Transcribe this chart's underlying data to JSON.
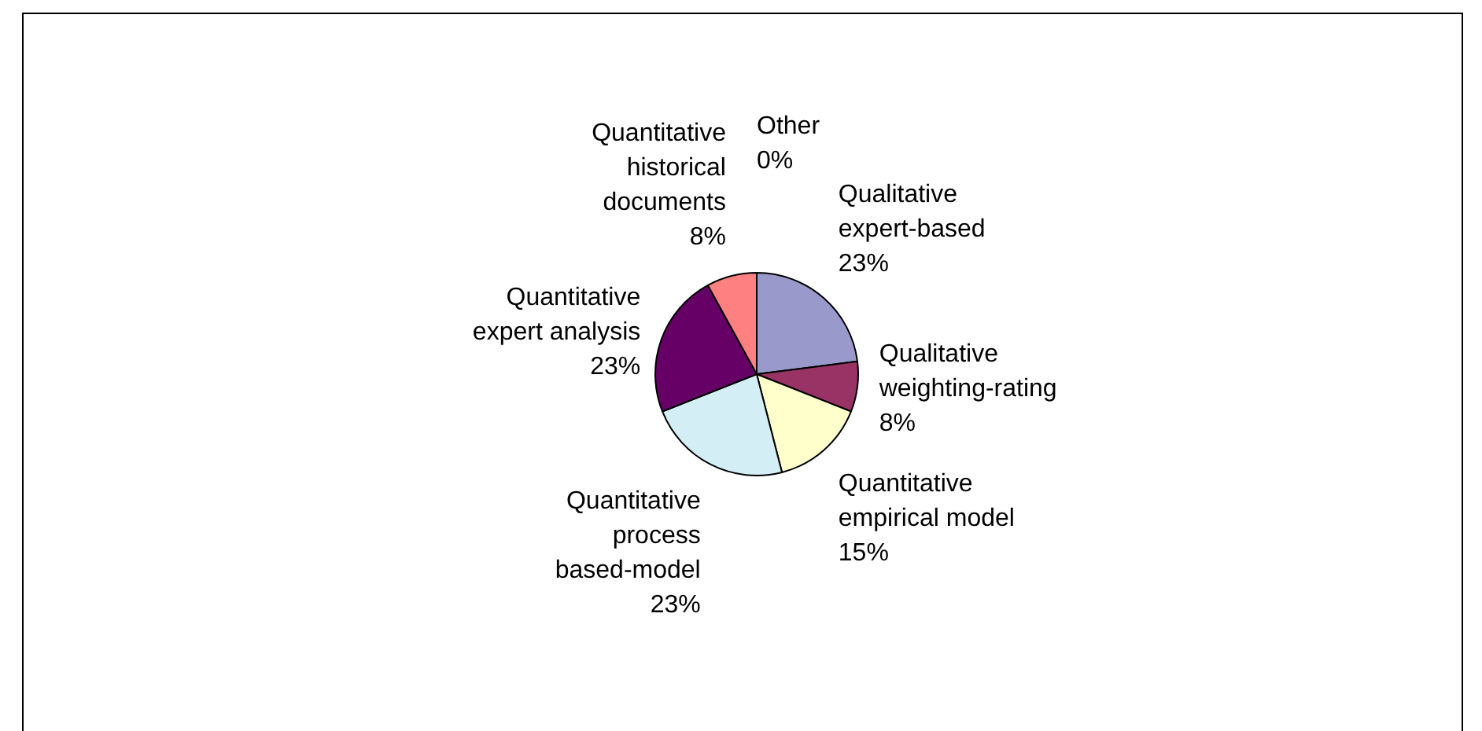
{
  "chart_data": {
    "type": "pie",
    "categories": [
      "Qualitative expert-based",
      "Qualitative weighting-rating",
      "Quantitative empirical model",
      "Quantitative process based-model",
      "Quantitative expert analysis",
      "Quantitative historical documents",
      "Other"
    ],
    "values": [
      23,
      8,
      15,
      23,
      23,
      8,
      0
    ],
    "value_labels": [
      "23%",
      "8%",
      "15%",
      "23%",
      "23%",
      "8%",
      "0%"
    ],
    "colors": [
      "#9999cc",
      "#993366",
      "#ffffcc",
      "#d4eef5",
      "#660066",
      "#ff8080",
      "#c0c0c0"
    ],
    "legend": false
  }
}
